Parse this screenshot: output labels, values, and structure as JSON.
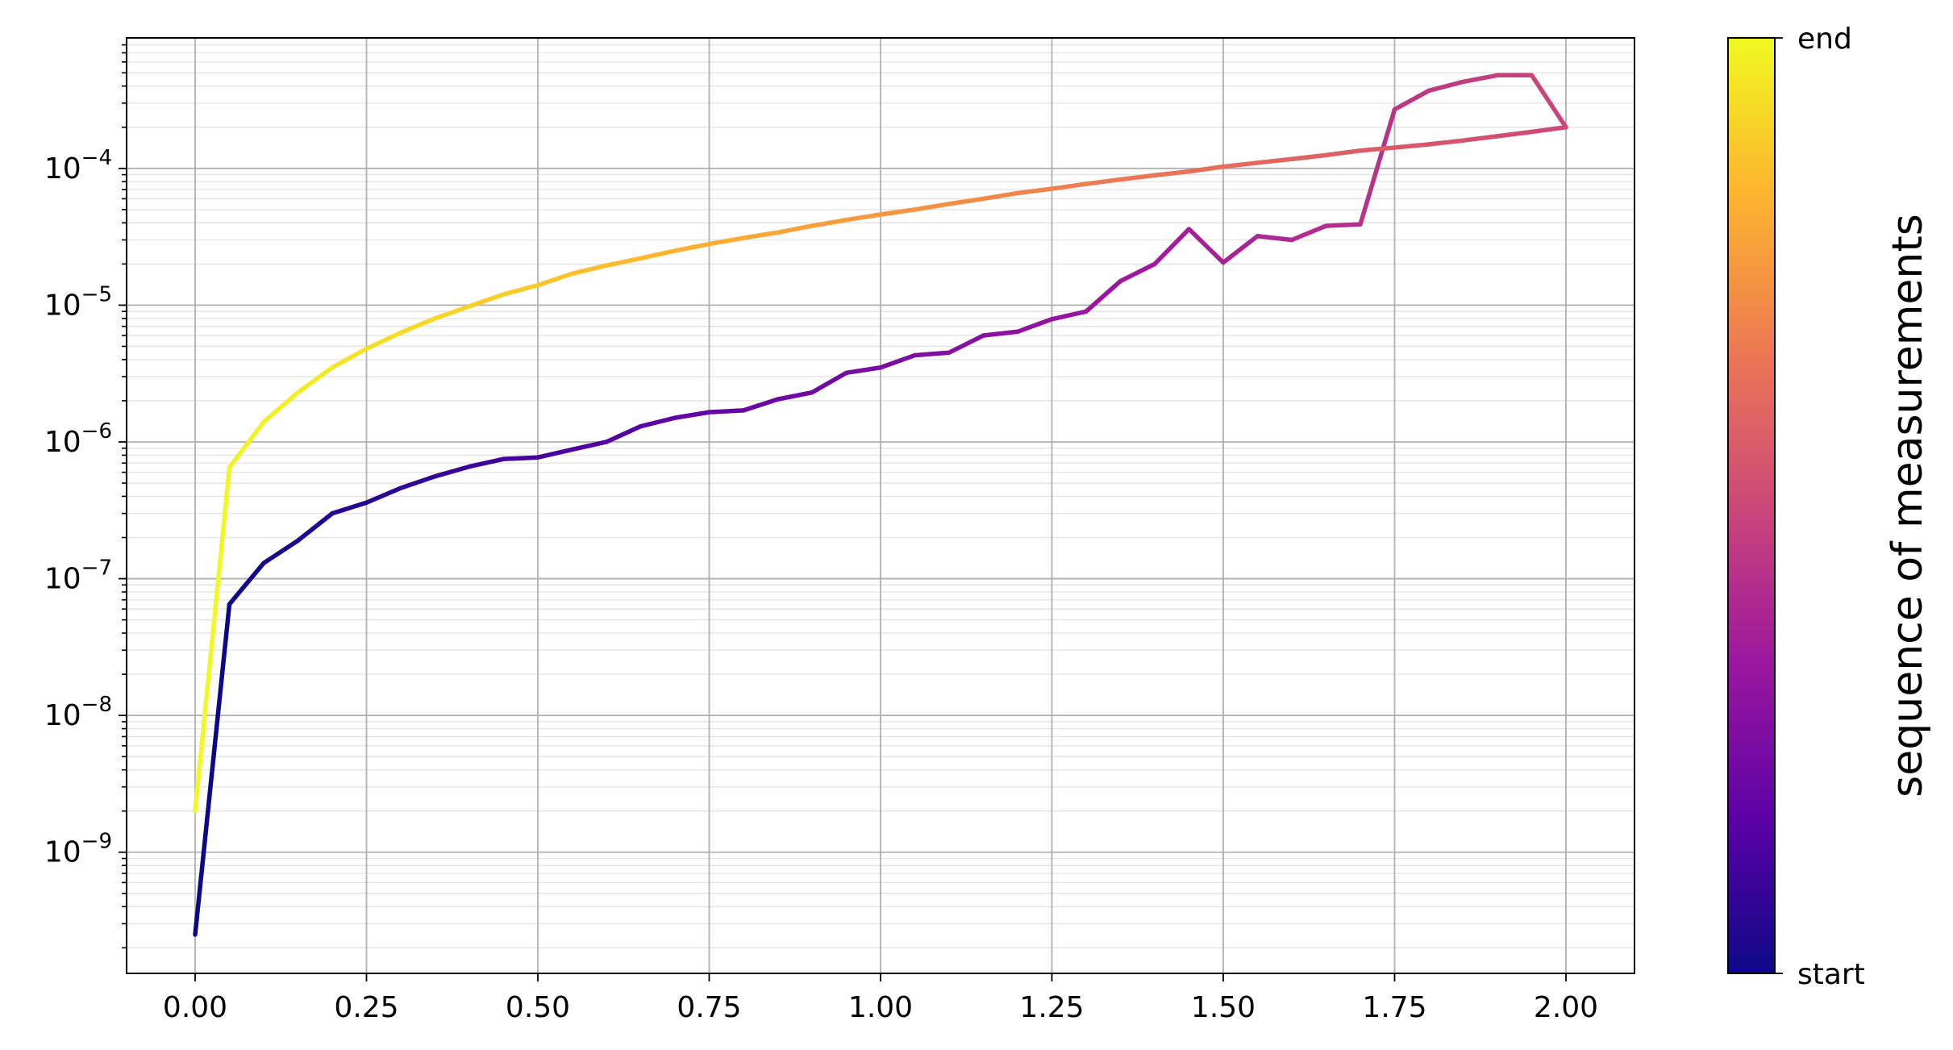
{
  "chart_data": {
    "type": "line",
    "x_scale": "linear",
    "y_scale": "log",
    "xlim": [
      -0.1,
      2.1
    ],
    "ylim": [
      1.3e-10,
      0.0009
    ],
    "x_ticks": [
      0.0,
      0.25,
      0.5,
      0.75,
      1.0,
      1.25,
      1.5,
      1.75,
      2.0
    ],
    "x_tick_labels": [
      "0.00",
      "0.25",
      "0.50",
      "0.75",
      "1.00",
      "1.25",
      "1.50",
      "1.75",
      "2.00"
    ],
    "y_ticks": [
      {
        "value": 1e-09,
        "base": "10",
        "exp": "−9"
      },
      {
        "value": 1e-08,
        "base": "10",
        "exp": "−8"
      },
      {
        "value": 1e-07,
        "base": "10",
        "exp": "−7"
      },
      {
        "value": 1e-06,
        "base": "10",
        "exp": "−6"
      },
      {
        "value": 1e-05,
        "base": "10",
        "exp": "−5"
      },
      {
        "value": 0.0001,
        "base": "10",
        "exp": "−4"
      }
    ],
    "grid": true,
    "minor_grid": true,
    "colormap": "plasma",
    "colormap_stops": [
      "#0d0887",
      "#5c01a6",
      "#9c179e",
      "#cc4778",
      "#ed7953",
      "#fdb42f",
      "#f0f921"
    ],
    "colorbar": {
      "label": "sequence of measurements",
      "tick_start": "start",
      "tick_end": "end"
    },
    "series": [
      {
        "x": [
          0.0,
          0.05,
          0.1,
          0.15,
          0.2,
          0.25,
          0.3,
          0.35,
          0.4,
          0.45,
          0.5,
          0.55,
          0.6,
          0.65,
          0.7,
          0.75,
          0.8,
          0.85,
          0.9,
          0.95,
          1.0,
          1.05,
          1.1,
          1.15,
          1.2,
          1.25,
          1.3,
          1.35,
          1.4,
          1.45,
          1.5,
          1.55,
          1.6,
          1.65,
          1.7,
          1.75,
          1.8,
          1.85,
          1.9,
          1.95,
          2.0,
          1.95,
          1.9,
          1.85,
          1.8,
          1.75,
          1.7,
          1.65,
          1.6,
          1.55,
          1.5,
          1.45,
          1.4,
          1.35,
          1.3,
          1.25,
          1.2,
          1.15,
          1.1,
          1.05,
          1.0,
          0.95,
          0.9,
          0.85,
          0.8,
          0.75,
          0.7,
          0.65,
          0.6,
          0.55,
          0.5,
          0.45,
          0.4,
          0.35,
          0.3,
          0.25,
          0.2,
          0.15,
          0.1,
          0.05,
          0.0
        ],
        "y": [
          2.5e-10,
          6.5e-08,
          1.3e-07,
          1.9e-07,
          3e-07,
          3.6e-07,
          4.6e-07,
          5.6e-07,
          6.6e-07,
          7.5e-07,
          7.7e-07,
          8.8e-07,
          1e-06,
          1.3e-06,
          1.5e-06,
          1.65e-06,
          1.7e-06,
          2.05e-06,
          2.3e-06,
          3.2e-06,
          3.5e-06,
          4.3e-06,
          4.5e-06,
          6e-06,
          6.4e-06,
          7.9e-06,
          9e-06,
          1.5e-05,
          2e-05,
          3.6e-05,
          2.05e-05,
          3.2e-05,
          3e-05,
          3.8e-05,
          3.9e-05,
          0.00027,
          0.00037,
          0.00043,
          0.00048,
          0.00048,
          0.0002,
          0.000185,
          0.000172,
          0.00016,
          0.00015,
          0.000142,
          0.000135,
          0.000125,
          0.000117,
          0.00011,
          0.000103,
          9.5e-05,
          8.9e-05,
          8.3e-05,
          7.7e-05,
          7.1e-05,
          6.6e-05,
          6e-05,
          5.5e-05,
          5e-05,
          4.6e-05,
          4.2e-05,
          3.8e-05,
          3.4e-05,
          3.1e-05,
          2.8e-05,
          2.5e-05,
          2.2e-05,
          1.95e-05,
          1.7e-05,
          1.4e-05,
          1.2e-05,
          9.8e-06,
          8e-06,
          6.3e-06,
          4.8e-06,
          3.5e-06,
          2.3e-06,
          1.4e-06,
          6.5e-07,
          2e-09
        ]
      }
    ]
  }
}
